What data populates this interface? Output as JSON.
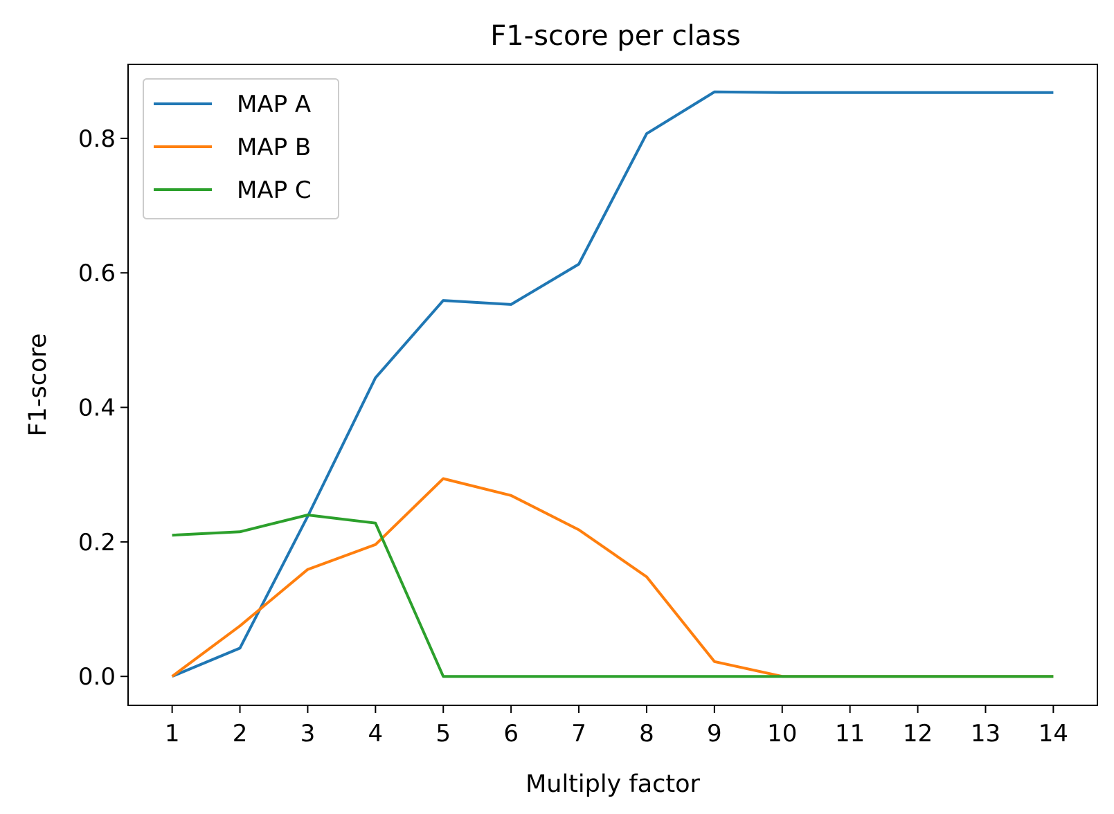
{
  "chart_data": {
    "type": "line",
    "title": "F1-score per class",
    "xlabel": "Multiply factor",
    "ylabel": "F1-score",
    "x": [
      1,
      2,
      3,
      4,
      5,
      6,
      7,
      8,
      9,
      10,
      11,
      12,
      13,
      14
    ],
    "xlim": [
      0.35,
      14.65
    ],
    "ylim": [
      -0.043,
      0.91
    ],
    "xticks": [
      1,
      2,
      3,
      4,
      5,
      6,
      7,
      8,
      9,
      10,
      11,
      12,
      13,
      14
    ],
    "yticks": [
      0.0,
      0.2,
      0.4,
      0.6,
      0.8
    ],
    "ytick_labels": [
      "0.0",
      "0.2",
      "0.4",
      "0.6",
      "0.8"
    ],
    "grid": false,
    "legend_position": "top-left",
    "series": [
      {
        "name": "MAP A",
        "color": "#1f77b4",
        "values": [
          0.0,
          0.042,
          0.238,
          0.444,
          0.559,
          0.553,
          0.613,
          0.807,
          0.869,
          0.868,
          0.868,
          0.868,
          0.868,
          0.868
        ]
      },
      {
        "name": "MAP B",
        "color": "#ff7f0e",
        "values": [
          0.0,
          0.075,
          0.159,
          0.196,
          0.294,
          0.269,
          0.218,
          0.148,
          0.022,
          0.0,
          0.0,
          0.0,
          0.0,
          0.0
        ]
      },
      {
        "name": "MAP C",
        "color": "#2ca02c",
        "values": [
          0.21,
          0.215,
          0.24,
          0.228,
          0.0,
          0.0,
          0.0,
          0.0,
          0.0,
          0.0,
          0.0,
          0.0,
          0.0,
          0.0
        ]
      }
    ]
  }
}
